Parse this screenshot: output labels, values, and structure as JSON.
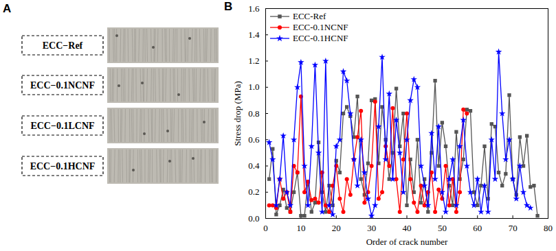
{
  "panel_a": {
    "label": "A",
    "specimens": [
      "ECC−Ref",
      "ECC−0.1NCNF",
      "ECC−0.1LCNF",
      "ECC−0.1HCNF"
    ]
  },
  "chart_data": {
    "type": "line",
    "title": "B",
    "x_label": "Order of crack number",
    "y_label": "Stress drop (MPa)",
    "xlim": [
      0,
      80
    ],
    "xticks": [
      0,
      10,
      20,
      30,
      40,
      50,
      60,
      70,
      80
    ],
    "ylim": [
      0,
      1.6
    ],
    "yticks": [
      {
        "value": 0,
        "label": "0.0"
      },
      {
        "value": 0.2,
        "label": "0.2"
      },
      {
        "value": 0.4,
        "label": "0.4"
      },
      {
        "value": 0.6,
        "label": "0.6"
      },
      {
        "value": 0.8,
        "label": "0.8"
      },
      {
        "value": 1.0,
        "label": "1.0"
      },
      {
        "value": 1.2,
        "label": "1.2"
      },
      {
        "value": 1.4,
        "label": "1.4"
      },
      {
        "value": 1.6,
        "label": "1.6"
      }
    ],
    "grid": false,
    "legend": "top-left",
    "series": [
      {
        "name": "ECC-Ref",
        "color": "#555555",
        "marker": "square",
        "x": [
          1,
          2,
          3,
          4,
          5,
          6,
          7,
          8,
          9,
          10,
          11,
          12,
          13,
          14,
          15,
          16,
          17,
          18,
          19,
          20,
          21,
          22,
          23,
          24,
          25,
          26,
          27,
          28,
          29,
          30,
          31,
          32,
          33,
          34,
          35,
          36,
          37,
          38,
          39,
          40,
          41,
          42,
          43,
          44,
          45,
          46,
          47,
          48,
          49,
          50,
          51,
          52,
          53,
          54,
          55,
          56,
          57,
          58,
          59,
          60,
          61,
          62,
          63,
          64,
          65,
          66,
          67,
          68,
          69,
          70,
          71,
          72,
          73,
          74,
          75,
          76,
          77
        ],
        "values": [
          0.3,
          0.53,
          0.03,
          0.1,
          0.22,
          0.08,
          0.05,
          0.2,
          0.35,
          0.02,
          0.02,
          0.28,
          0.05,
          0.12,
          0.58,
          0.2,
          0.05,
          0.25,
          0.1,
          0.44,
          0.35,
          0.8,
          0.85,
          0.78,
          0.62,
          0.93,
          0.3,
          0.18,
          0.42,
          0.9,
          0.91,
          0.42,
          0.85,
          0.6,
          0.3,
          0.5,
          0.99,
          0.55,
          0.8,
          0.1,
          0.45,
          0.2,
          0.6,
          0.12,
          0.3,
          0.05,
          0.5,
          1.05,
          0.4,
          0.73,
          0.55,
          0.25,
          0.1,
          0.66,
          0.3,
          0.45,
          0.83,
          0.82,
          0.2,
          0.1,
          0.25,
          0.55,
          0.15,
          0.72,
          0.7,
          0.35,
          0.25,
          0.34,
          0.94,
          0.3,
          0.18,
          0.62,
          0.4,
          0.63,
          0.24,
          0.25,
          0.02
        ]
      },
      {
        "name": "ECC-0.1NCNF",
        "color": "#ff0000",
        "marker": "circle",
        "x": [
          1,
          2,
          3,
          4,
          5,
          6,
          7,
          8,
          9,
          10,
          11,
          12,
          13,
          14,
          15,
          16,
          17,
          18,
          19,
          20,
          21,
          22,
          23,
          24,
          25,
          26,
          27,
          28,
          29,
          30,
          31,
          32,
          33,
          34,
          35,
          36,
          37,
          38,
          39,
          40,
          41,
          42,
          43,
          44,
          45,
          46,
          47,
          48,
          49,
          50,
          51,
          52,
          53,
          54,
          55,
          56,
          57
        ],
        "values": [
          0.1,
          0.1,
          0.08,
          0.3,
          0.15,
          0.2,
          0.05,
          0.4,
          0.35,
          0.93,
          0.2,
          0.28,
          0.14,
          0.15,
          0.12,
          0.35,
          0.1,
          0.05,
          0.25,
          0.4,
          0.15,
          0.05,
          0.3,
          0.18,
          0.45,
          0.62,
          0.82,
          0.12,
          0.2,
          0.4,
          0.89,
          0.15,
          0.2,
          0.55,
          0.4,
          0.84,
          0.3,
          0.05,
          0.45,
          0.8,
          0.3,
          0.12,
          0.05,
          0.25,
          0.1,
          0.2,
          0.35,
          0.05,
          0.22,
          0.15,
          0.4,
          0.1,
          0.3,
          0.05,
          0.2,
          0.83,
          0.8
        ]
      },
      {
        "name": "ECC-0.1HCNF",
        "color": "#0000ff",
        "marker": "star",
        "x": [
          1,
          2,
          3,
          4,
          5,
          6,
          7,
          8,
          9,
          10,
          11,
          12,
          13,
          14,
          15,
          16,
          17,
          18,
          19,
          20,
          21,
          22,
          23,
          24,
          25,
          26,
          27,
          28,
          29,
          30,
          31,
          32,
          33,
          34,
          35,
          36,
          37,
          38,
          39,
          40,
          41,
          42,
          43,
          44,
          45,
          46,
          47,
          48,
          49,
          50,
          51,
          52,
          53,
          54,
          55,
          56,
          57,
          58,
          59,
          60,
          61,
          62,
          63,
          64,
          65,
          66,
          67,
          68,
          69,
          70,
          71,
          72,
          73,
          74,
          75
        ],
        "values": [
          0.58,
          0.45,
          0.1,
          0.3,
          0.63,
          0.2,
          0.1,
          0.6,
          1.0,
          1.19,
          0.4,
          0.1,
          0.55,
          1.17,
          0.5,
          0.05,
          1.2,
          0.1,
          0.03,
          0.55,
          0.6,
          1.12,
          1.05,
          0.8,
          0.45,
          0.25,
          0.6,
          0.35,
          0.15,
          0.02,
          0.1,
          0.7,
          1.23,
          0.45,
          0.95,
          0.3,
          0.75,
          0.5,
          0.2,
          0.6,
          0.9,
          1.06,
          1.0,
          0.4,
          0.25,
          0.1,
          0.65,
          0.3,
          0.7,
          0.2,
          0.05,
          0.3,
          0.45,
          0.1,
          0.55,
          0.75,
          0.4,
          0.2,
          0.1,
          0.3,
          0.05,
          0.25,
          0.05,
          0.6,
          0.3,
          1.27,
          0.8,
          0.45,
          0.6,
          0.3,
          0.15,
          0.4,
          0.2,
          0.1,
          0.08
        ]
      }
    ]
  }
}
